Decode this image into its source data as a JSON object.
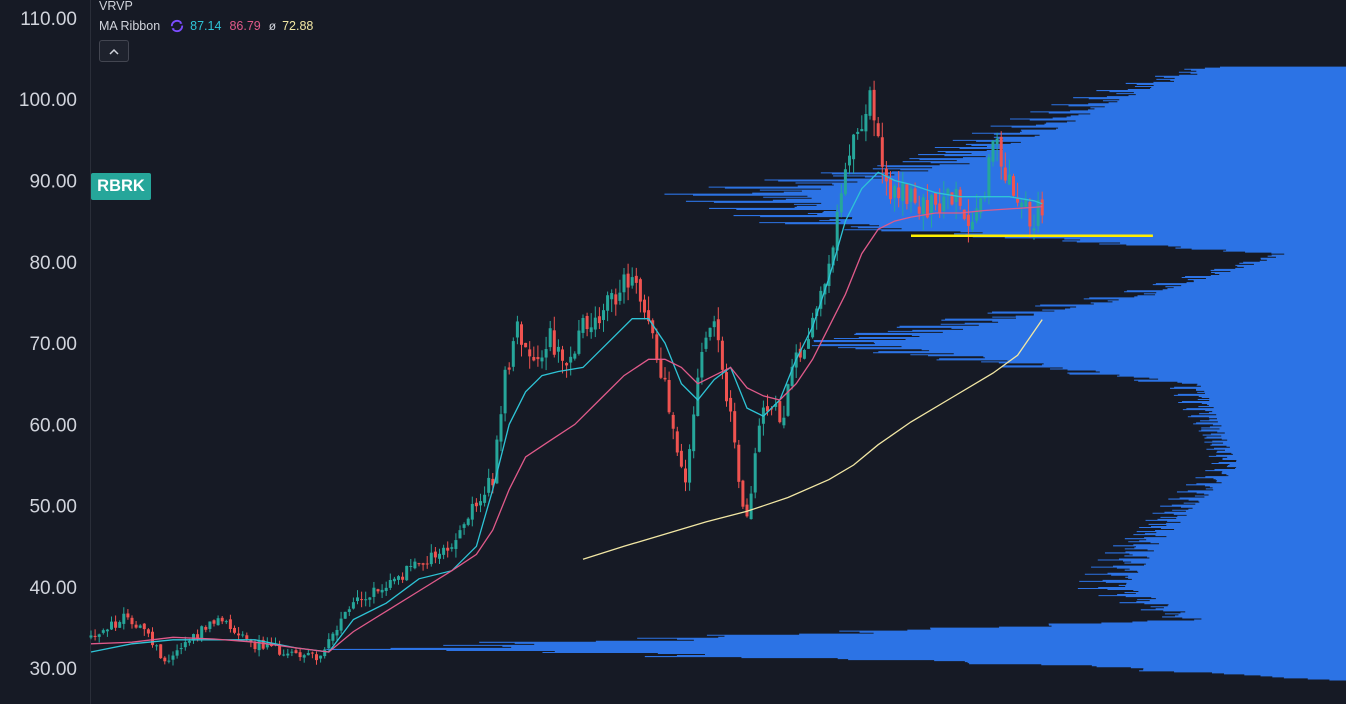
{
  "overlay": {
    "vrvp_label": "VRVP",
    "ma_ribbon_label": "MA Ribbon",
    "ma_values": [
      "87.14",
      "86.79",
      "72.88"
    ],
    "phi_symbol": "ø",
    "collapse_icon": "chevron-up-icon"
  },
  "ticker_label": "RBRK",
  "colors": {
    "background": "#161a25",
    "up_candle": "#26a69a",
    "down_candle": "#ef5350",
    "ma_fast": "#2ec4d6",
    "ma_mid": "#e05a8a",
    "ma_slow": "#f2e7a4",
    "support_line": "#ffee00",
    "volume_profile": "#2f7bf5"
  },
  "chart_data": {
    "type": "candlestick",
    "symbol": "RBRK",
    "y_axis": {
      "ticks": [
        "110.00",
        "100.00",
        "90.00",
        "80.00",
        "70.00",
        "60.00",
        "50.00",
        "40.00",
        "30.00"
      ],
      "range": [
        25.6,
        112.2
      ]
    },
    "trend_path": [
      [
        0,
        34
      ],
      [
        8,
        36
      ],
      [
        12,
        35.5
      ],
      [
        18,
        31
      ],
      [
        25,
        34
      ],
      [
        32,
        36
      ],
      [
        40,
        33
      ],
      [
        48,
        32
      ],
      [
        56,
        31.5
      ],
      [
        64,
        38
      ],
      [
        72,
        40
      ],
      [
        80,
        43
      ],
      [
        88,
        45
      ],
      [
        96,
        52
      ],
      [
        98,
        53
      ],
      [
        101,
        66
      ],
      [
        104,
        72
      ],
      [
        108,
        68
      ],
      [
        112,
        71
      ],
      [
        116,
        66
      ],
      [
        120,
        72
      ],
      [
        124,
        73
      ],
      [
        128,
        76
      ],
      [
        132,
        79
      ],
      [
        134,
        76
      ],
      [
        136,
        72
      ],
      [
        140,
        65
      ],
      [
        144,
        55
      ],
      [
        145,
        52
      ],
      [
        148,
        66
      ],
      [
        150,
        70
      ],
      [
        152,
        72
      ],
      [
        154,
        66
      ],
      [
        156,
        62
      ],
      [
        158,
        52
      ],
      [
        160,
        48
      ],
      [
        163,
        60
      ],
      [
        166,
        63
      ],
      [
        168,
        60
      ],
      [
        172,
        68
      ],
      [
        176,
        73
      ],
      [
        180,
        80
      ],
      [
        184,
        90
      ],
      [
        186,
        95
      ],
      [
        188,
        98
      ],
      [
        190,
        101
      ],
      [
        192,
        94
      ],
      [
        195,
        87
      ],
      [
        198,
        89
      ],
      [
        202,
        86
      ],
      [
        206,
        87
      ],
      [
        210,
        88
      ],
      [
        214,
        85
      ],
      [
        218,
        89
      ],
      [
        220,
        96
      ],
      [
        222,
        92
      ],
      [
        226,
        89
      ],
      [
        230,
        85
      ],
      [
        232,
        87
      ]
    ],
    "moving_averages": [
      {
        "name": "MA fast",
        "points": [
          [
            0,
            32
          ],
          [
            10,
            33
          ],
          [
            20,
            33.5
          ],
          [
            30,
            33.5
          ],
          [
            40,
            33.5
          ],
          [
            50,
            32.5
          ],
          [
            58,
            32
          ],
          [
            64,
            36
          ],
          [
            72,
            38
          ],
          [
            80,
            41
          ],
          [
            88,
            42
          ],
          [
            94,
            45
          ],
          [
            98,
            52
          ],
          [
            102,
            60
          ],
          [
            106,
            64
          ],
          [
            110,
            66
          ],
          [
            114,
            66.5
          ],
          [
            120,
            67
          ],
          [
            126,
            70
          ],
          [
            132,
            73
          ],
          [
            136,
            73
          ],
          [
            140,
            70
          ],
          [
            144,
            65
          ],
          [
            148,
            63
          ],
          [
            152,
            65.5
          ],
          [
            156,
            67
          ],
          [
            160,
            62
          ],
          [
            164,
            61
          ],
          [
            168,
            63
          ],
          [
            172,
            68
          ],
          [
            176,
            72
          ],
          [
            180,
            78
          ],
          [
            184,
            85
          ],
          [
            188,
            89
          ],
          [
            192,
            91
          ],
          [
            196,
            90
          ],
          [
            200,
            89.5
          ],
          [
            206,
            88.5
          ],
          [
            212,
            88
          ],
          [
            218,
            88
          ],
          [
            224,
            88
          ],
          [
            230,
            87.5
          ],
          [
            232,
            87.14
          ]
        ]
      },
      {
        "name": "MA mid",
        "points": [
          [
            0,
            33
          ],
          [
            10,
            33.2
          ],
          [
            20,
            33.8
          ],
          [
            30,
            33.6
          ],
          [
            40,
            33.2
          ],
          [
            50,
            32.5
          ],
          [
            58,
            32
          ],
          [
            64,
            34.5
          ],
          [
            72,
            37
          ],
          [
            80,
            39.5
          ],
          [
            88,
            42
          ],
          [
            94,
            44
          ],
          [
            98,
            47
          ],
          [
            102,
            52
          ],
          [
            106,
            56
          ],
          [
            112,
            58
          ],
          [
            118,
            60
          ],
          [
            124,
            63
          ],
          [
            130,
            66
          ],
          [
            136,
            68
          ],
          [
            140,
            68
          ],
          [
            144,
            67
          ],
          [
            148,
            65
          ],
          [
            152,
            66
          ],
          [
            156,
            67
          ],
          [
            160,
            64.5
          ],
          [
            164,
            63.5
          ],
          [
            168,
            63
          ],
          [
            172,
            65
          ],
          [
            176,
            68
          ],
          [
            180,
            72
          ],
          [
            184,
            76
          ],
          [
            188,
            81
          ],
          [
            192,
            84
          ],
          [
            196,
            85
          ],
          [
            200,
            85.5
          ],
          [
            206,
            86
          ],
          [
            212,
            86
          ],
          [
            218,
            86.3
          ],
          [
            224,
            86.5
          ],
          [
            230,
            86.7
          ],
          [
            232,
            86.79
          ]
        ]
      },
      {
        "name": "MA slow",
        "points": [
          [
            120,
            43.4
          ],
          [
            130,
            45
          ],
          [
            140,
            46.5
          ],
          [
            150,
            48
          ],
          [
            160,
            49.3
          ],
          [
            170,
            51
          ],
          [
            180,
            53.2
          ],
          [
            186,
            55
          ],
          [
            192,
            57.5
          ],
          [
            200,
            60.3
          ],
          [
            210,
            63.3
          ],
          [
            220,
            66.3
          ],
          [
            226,
            68.5
          ],
          [
            232,
            72.88
          ]
        ]
      }
    ],
    "support_level": 83.2,
    "volume_profile_peaks": [
      [
        101,
        0.17
      ],
      [
        96,
        0.25
      ],
      [
        92,
        0.32
      ],
      [
        88.5,
        0.46
      ],
      [
        84.5,
        0.39
      ],
      [
        81,
        0.05
      ],
      [
        76,
        0.16
      ],
      [
        70,
        0.39
      ],
      [
        65,
        0.12
      ],
      [
        55,
        0.09
      ],
      [
        45,
        0.16
      ],
      [
        40,
        0.18
      ],
      [
        36,
        0.12
      ],
      [
        32.5,
        0.72
      ],
      [
        30.5,
        0.22
      ]
    ],
    "grid": false,
    "legend": "top-left"
  }
}
